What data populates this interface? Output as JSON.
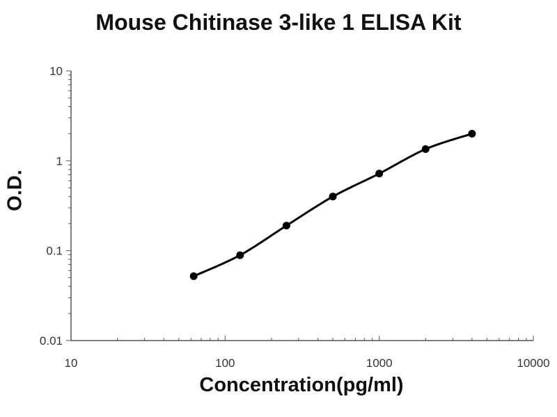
{
  "chart_data": {
    "type": "scatter",
    "title": "Mouse Chitinase 3-like 1 ELISA Kit",
    "xlabel": "Concentration(pg/ml)",
    "ylabel": "O.D.",
    "x_scale": "log",
    "y_scale": "log",
    "xlim": [
      10,
      10000
    ],
    "ylim": [
      0.01,
      10
    ],
    "x_ticks": [
      10,
      100,
      1000,
      10000
    ],
    "x_tick_labels": [
      "10",
      "100",
      "1000",
      "10000"
    ],
    "y_ticks": [
      0.01,
      0.1,
      1,
      10
    ],
    "y_tick_labels": [
      "0.01",
      "0.1",
      "1",
      "10"
    ],
    "grid": false,
    "legend": "none",
    "series": [
      {
        "x": [
          62.5,
          125,
          250,
          500,
          1000,
          2000,
          4000
        ],
        "y": [
          0.052,
          0.089,
          0.19,
          0.4,
          0.72,
          1.35,
          2.0
        ],
        "fit_curve": true
      }
    ],
    "colors": {
      "line": "#000000",
      "marker": "#000000",
      "axis": "#555555"
    }
  }
}
